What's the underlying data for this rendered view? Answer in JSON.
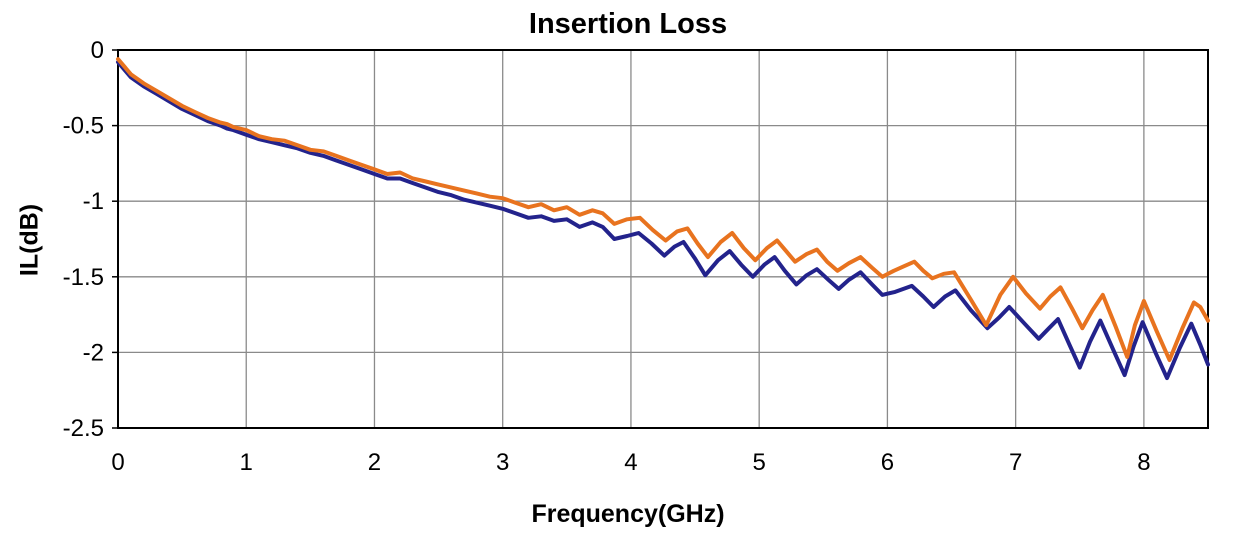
{
  "chart_data": {
    "type": "line",
    "title": "Insertion Loss",
    "xlabel": "Frequency(GHz)",
    "ylabel": "IL(dB)",
    "xlim": [
      0,
      8.5
    ],
    "ylim": [
      -2.5,
      0
    ],
    "x_ticks": [
      0,
      1,
      2,
      3,
      4,
      5,
      6,
      7,
      8
    ],
    "x_tick_labels": [
      "0",
      "1",
      "2",
      "3",
      "4",
      "5",
      "6",
      "7",
      "8"
    ],
    "y_ticks": [
      0,
      -0.5,
      -1,
      -1.5,
      -2,
      -2.5
    ],
    "y_tick_labels": [
      "0",
      "-0.5",
      "-1",
      "-1.5",
      "-2",
      "-2.5"
    ],
    "grid": true,
    "legend": "none",
    "axis_color": "#000000",
    "grid_color": "#8a8a8a",
    "line_width": 4,
    "series": [
      {
        "name": "navy",
        "color": "#23238c",
        "x": [
          0.0,
          0.05,
          0.1,
          0.15,
          0.2,
          0.3,
          0.4,
          0.5,
          0.6,
          0.7,
          0.8,
          0.85,
          0.9,
          1.0,
          1.1,
          1.2,
          1.3,
          1.4,
          1.5,
          1.6,
          1.7,
          1.8,
          1.9,
          2.0,
          2.1,
          2.2,
          2.3,
          2.4,
          2.5,
          2.6,
          2.7,
          2.8,
          2.9,
          3.0,
          3.1,
          3.2,
          3.3,
          3.4,
          3.5,
          3.6,
          3.7,
          3.78,
          3.87,
          3.97,
          4.06,
          4.16,
          4.26,
          4.34,
          4.41,
          4.5,
          4.58,
          4.68,
          4.77,
          4.86,
          4.95,
          5.04,
          5.12,
          5.2,
          5.29,
          5.37,
          5.45,
          5.54,
          5.62,
          5.7,
          5.79,
          5.88,
          5.96,
          6.06,
          6.19,
          6.28,
          6.36,
          6.45,
          6.53,
          6.65,
          6.78,
          6.87,
          6.95,
          7.07,
          7.18,
          7.26,
          7.33,
          7.42,
          7.5,
          7.58,
          7.66,
          7.76,
          7.85,
          7.92,
          7.99,
          8.09,
          8.18,
          8.28,
          8.37,
          8.44,
          8.5
        ],
        "y": [
          -0.08,
          -0.13,
          -0.18,
          -0.21,
          -0.24,
          -0.29,
          -0.34,
          -0.39,
          -0.43,
          -0.47,
          -0.5,
          -0.52,
          -0.53,
          -0.56,
          -0.59,
          -0.61,
          -0.63,
          -0.65,
          -0.68,
          -0.7,
          -0.73,
          -0.76,
          -0.79,
          -0.82,
          -0.85,
          -0.85,
          -0.88,
          -0.91,
          -0.94,
          -0.96,
          -0.99,
          -1.01,
          -1.03,
          -1.05,
          -1.08,
          -1.11,
          -1.1,
          -1.13,
          -1.12,
          -1.17,
          -1.14,
          -1.17,
          -1.25,
          -1.23,
          -1.21,
          -1.28,
          -1.36,
          -1.3,
          -1.27,
          -1.38,
          -1.49,
          -1.39,
          -1.33,
          -1.42,
          -1.5,
          -1.42,
          -1.37,
          -1.46,
          -1.55,
          -1.49,
          -1.45,
          -1.52,
          -1.58,
          -1.52,
          -1.47,
          -1.55,
          -1.62,
          -1.6,
          -1.56,
          -1.63,
          -1.7,
          -1.63,
          -1.59,
          -1.72,
          -1.84,
          -1.77,
          -1.7,
          -1.81,
          -1.91,
          -1.84,
          -1.78,
          -1.95,
          -2.1,
          -1.93,
          -1.79,
          -1.98,
          -2.15,
          -1.96,
          -1.8,
          -2.0,
          -2.17,
          -1.97,
          -1.81,
          -1.95,
          -2.08
        ]
      },
      {
        "name": "orange",
        "color": "#e8731f",
        "x": [
          0.0,
          0.05,
          0.1,
          0.15,
          0.2,
          0.3,
          0.4,
          0.5,
          0.6,
          0.7,
          0.8,
          0.85,
          0.9,
          1.0,
          1.1,
          1.2,
          1.3,
          1.4,
          1.5,
          1.6,
          1.7,
          1.8,
          1.9,
          2.0,
          2.1,
          2.2,
          2.3,
          2.4,
          2.5,
          2.6,
          2.7,
          2.8,
          2.9,
          3.0,
          3.1,
          3.2,
          3.3,
          3.4,
          3.5,
          3.6,
          3.7,
          3.78,
          3.87,
          3.97,
          4.07,
          4.17,
          4.27,
          4.36,
          4.44,
          4.52,
          4.6,
          4.7,
          4.79,
          4.88,
          4.97,
          5.06,
          5.14,
          5.21,
          5.28,
          5.37,
          5.45,
          5.53,
          5.61,
          5.7,
          5.79,
          5.88,
          5.96,
          6.05,
          6.13,
          6.21,
          6.28,
          6.35,
          6.44,
          6.52,
          6.65,
          6.77,
          6.88,
          6.98,
          7.08,
          7.19,
          7.27,
          7.35,
          7.44,
          7.52,
          7.6,
          7.68,
          7.78,
          7.87,
          7.93,
          8.0,
          8.1,
          8.2,
          8.3,
          8.39,
          8.44,
          8.5
        ],
        "y": [
          -0.06,
          -0.11,
          -0.16,
          -0.19,
          -0.22,
          -0.27,
          -0.32,
          -0.37,
          -0.41,
          -0.45,
          -0.48,
          -0.49,
          -0.51,
          -0.53,
          -0.57,
          -0.59,
          -0.6,
          -0.63,
          -0.66,
          -0.67,
          -0.7,
          -0.73,
          -0.76,
          -0.79,
          -0.82,
          -0.81,
          -0.85,
          -0.87,
          -0.89,
          -0.91,
          -0.93,
          -0.95,
          -0.97,
          -0.98,
          -1.01,
          -1.04,
          -1.02,
          -1.06,
          -1.04,
          -1.09,
          -1.06,
          -1.08,
          -1.15,
          -1.12,
          -1.11,
          -1.19,
          -1.26,
          -1.2,
          -1.18,
          -1.28,
          -1.37,
          -1.27,
          -1.21,
          -1.31,
          -1.39,
          -1.31,
          -1.26,
          -1.33,
          -1.4,
          -1.35,
          -1.32,
          -1.4,
          -1.46,
          -1.41,
          -1.37,
          -1.44,
          -1.5,
          -1.46,
          -1.43,
          -1.4,
          -1.46,
          -1.51,
          -1.48,
          -1.47,
          -1.65,
          -1.82,
          -1.62,
          -1.5,
          -1.61,
          -1.71,
          -1.63,
          -1.57,
          -1.71,
          -1.84,
          -1.72,
          -1.62,
          -1.83,
          -2.03,
          -1.82,
          -1.66,
          -1.86,
          -2.05,
          -1.84,
          -1.67,
          -1.7,
          -1.79
        ]
      }
    ]
  }
}
